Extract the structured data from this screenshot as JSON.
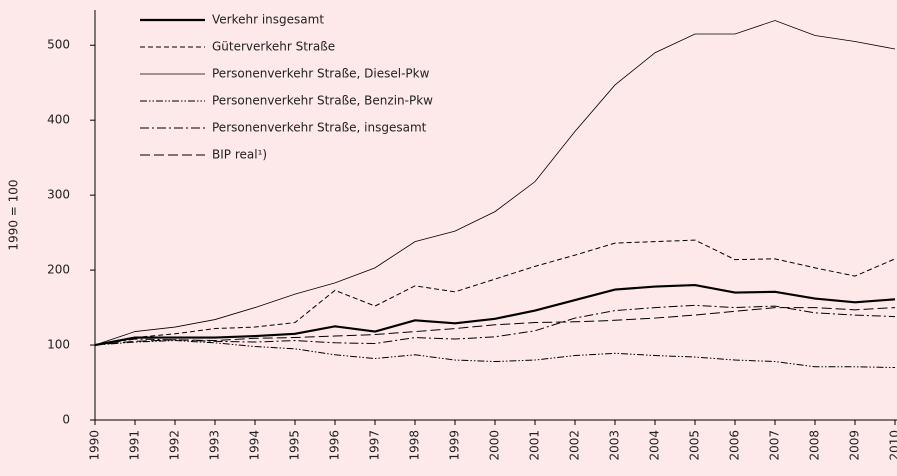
{
  "chart_data": {
    "type": "line",
    "y_axis_label": "1990 = 100",
    "categories": [
      "1990",
      "1991",
      "1992",
      "1993",
      "1994",
      "1995",
      "1996",
      "1997",
      "1998",
      "1999",
      "2000",
      "2001",
      "2002",
      "2003",
      "2004",
      "2005",
      "2006",
      "2007",
      "2008",
      "2009",
      "2010"
    ],
    "ylim": [
      0,
      547
    ],
    "yticks": [
      0,
      100,
      200,
      300,
      400,
      500
    ],
    "series": [
      {
        "name": "Verkehr insgesamt",
        "color": "#000000",
        "line_style": "solid",
        "line_width": 2.2,
        "values": [
          100,
          110,
          110,
          110,
          112,
          115,
          125,
          118,
          133,
          129,
          135,
          146,
          160,
          174,
          178,
          180,
          170,
          171,
          162,
          157,
          161
        ]
      },
      {
        "name": "Güterverkehr Straße",
        "color": "#000000",
        "line_style": "dashed",
        "line_width": 1,
        "values": [
          100,
          110,
          115,
          122,
          124,
          130,
          173,
          152,
          179,
          171,
          188,
          205,
          220,
          236,
          238,
          240,
          214,
          215,
          203,
          192,
          215
        ]
      },
      {
        "name": "Personenverkehr Straße, Diesel-Pkw",
        "color": "#000000",
        "line_style": "solid",
        "line_width": 0.8,
        "values": [
          100,
          118,
          124,
          134,
          150,
          168,
          183,
          203,
          238,
          252,
          278,
          318,
          385,
          447,
          490,
          515,
          515,
          533,
          513,
          505,
          495
        ]
      },
      {
        "name": "Personenverkehr Straße, Benzin-Pkw",
        "color": "#000000",
        "line_style": "dash-dot-dot",
        "line_width": 1,
        "values": [
          100,
          104,
          106,
          103,
          98,
          95,
          87,
          82,
          87,
          80,
          78,
          80,
          86,
          89,
          86,
          84,
          80,
          78,
          71,
          71,
          70
        ]
      },
      {
        "name": "Personenverkehr Straße, insgesamt",
        "color": "#000000",
        "line_style": "dash-dot",
        "line_width": 1,
        "values": [
          100,
          108,
          107,
          105,
          104,
          106,
          103,
          102,
          110,
          108,
          111,
          119,
          136,
          146,
          150,
          153,
          150,
          152,
          143,
          140,
          138
        ]
      },
      {
        "name": "BIP real¹)",
        "color": "#000000",
        "line_style": "long-dash",
        "line_width": 1,
        "values": [
          100,
          105,
          107,
          106,
          109,
          110,
          112,
          114,
          118,
          122,
          127,
          130,
          131,
          133,
          136,
          140,
          145,
          150,
          150,
          147,
          150
        ]
      }
    ]
  }
}
